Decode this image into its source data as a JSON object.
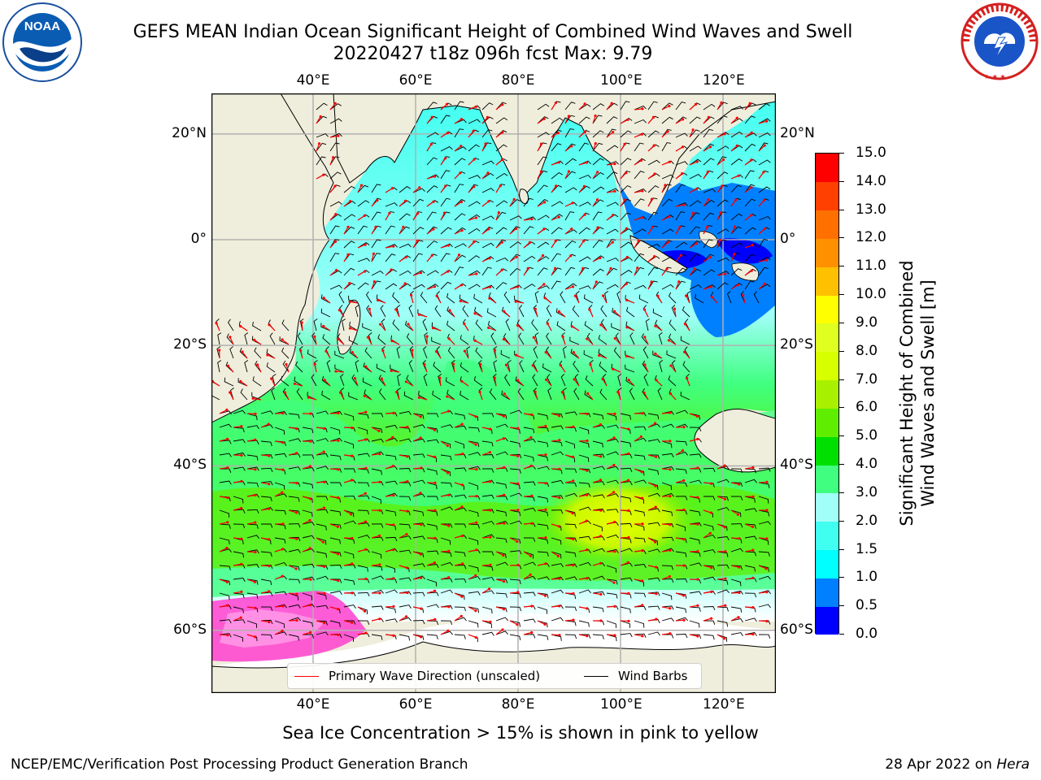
{
  "title": {
    "line1": "GEFS MEAN Indian Ocean Significant Height of Combined Wind Waves and Swell",
    "line2": "20220427 t18z 096h fcst   Max: 9.79"
  },
  "logos": {
    "noaa": {
      "text": "NOAA",
      "ring_text": "NATIONAL OCEANIC AND ATMOSPHERIC ADMINISTRATION · U.S. DEPARTMENT OF COMMERCE"
    },
    "nws": {
      "ring_text": "NATIONAL WEATHER SERVICE"
    }
  },
  "map": {
    "lon_labels_top": [
      "40°E",
      "60°E",
      "80°E",
      "100°E",
      "120°E"
    ],
    "lon_labels_bottom": [
      "40°E",
      "60°E",
      "80°E",
      "100°E",
      "120°E"
    ],
    "lat_labels_left": [
      "20°N",
      "0°",
      "20°S",
      "40°S",
      "60°S"
    ],
    "lat_labels_right": [
      "20°N",
      "0°",
      "20°S",
      "40°S",
      "60°S"
    ],
    "lon_values": [
      40,
      60,
      80,
      100,
      120
    ],
    "lat_values": [
      20,
      0,
      -20,
      -40,
      -60
    ],
    "colors": {
      "land": "#efeedc",
      "ice_white": "#ffffff",
      "grid": "#b0b0b0",
      "wave_arrow": "#ff0000",
      "barb": "#000000"
    }
  },
  "legend": {
    "primary_wave": "Primary Wave Direction (unscaled)",
    "wind_barbs": "Wind Barbs"
  },
  "colorbar": {
    "label_line1": "Significant Height of Combined",
    "label_line2": "Wind Waves and Swell [m]",
    "ticks": [
      "15.0",
      "14.0",
      "13.0",
      "12.0",
      "11.0",
      "10.0",
      "9.0",
      "8.0",
      "7.0",
      "6.0",
      "5.0",
      "4.0",
      "3.0",
      "2.0",
      "1.5",
      "1.0",
      "0.5",
      "0.0"
    ],
    "colors_bottom_to_top": [
      "#0000ff",
      "#0080ff",
      "#00ffff",
      "#40fff0",
      "#a0fff8",
      "#40ff80",
      "#00e000",
      "#60ee00",
      "#a8f000",
      "#d8ff00",
      "#e0ff20",
      "#ffff00",
      "#ffc000",
      "#ff9000",
      "#ff7000",
      "#ff4000",
      "#ff0000"
    ]
  },
  "caption": "Sea Ice Concentration > 15% is shown in pink to yellow",
  "footer": {
    "left": "NCEP/EMC/Verification Post Processing Product Generation Branch",
    "right_date": "28 Apr 2022 on",
    "right_host": "Hera"
  }
}
